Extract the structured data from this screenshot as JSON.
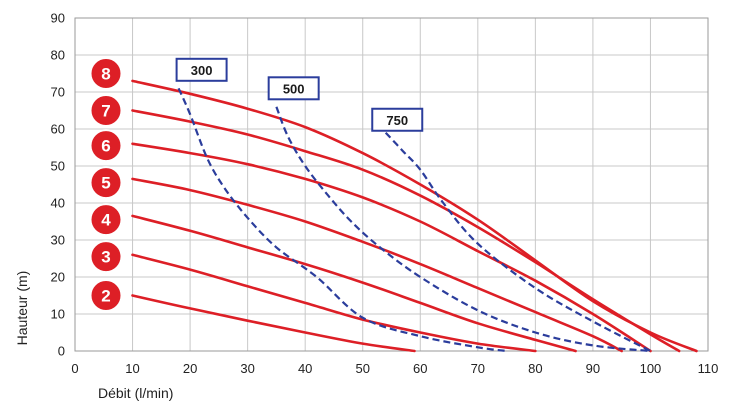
{
  "chart_data": {
    "type": "line",
    "xlabel": "Débit (l/min)",
    "ylabel": "Hauteur (m)",
    "xlim": [
      0,
      110
    ],
    "ylim": [
      0,
      90
    ],
    "x_ticks": [
      "0",
      "10",
      "20",
      "30",
      "40",
      "50",
      "60",
      "70",
      "80",
      "90",
      "100",
      "110"
    ],
    "y_ticks": [
      "0",
      "10",
      "20",
      "30",
      "40",
      "50",
      "60",
      "70",
      "80",
      "90"
    ],
    "grid": true,
    "colors": {
      "pressure": "#dd1f26",
      "flow": "#2b3d9c",
      "badge": "#dd1f26",
      "grid": "#c8c8c8"
    },
    "series": [
      {
        "name": "2",
        "x": [
          10,
          20,
          30,
          40,
          50,
          59
        ],
        "y": [
          15,
          11.5,
          8.2,
          5,
          2,
          0
        ]
      },
      {
        "name": "3",
        "x": [
          10,
          20,
          30,
          40,
          50,
          60,
          70,
          80
        ],
        "y": [
          26,
          22,
          17.5,
          13,
          8.5,
          5,
          2,
          0
        ]
      },
      {
        "name": "4",
        "x": [
          10,
          20,
          30,
          40,
          50,
          60,
          70,
          80,
          87
        ],
        "y": [
          36.5,
          32.5,
          28,
          23.5,
          18.5,
          13,
          7.5,
          3,
          0
        ]
      },
      {
        "name": "5",
        "x": [
          10,
          20,
          30,
          40,
          50,
          60,
          70,
          80,
          90,
          95
        ],
        "y": [
          46.5,
          43.5,
          39.5,
          35,
          29.5,
          23.5,
          17,
          10.5,
          4,
          0
        ]
      },
      {
        "name": "6",
        "x": [
          10,
          20,
          30,
          40,
          50,
          60,
          70,
          80,
          90,
          100
        ],
        "y": [
          56,
          53.5,
          50.5,
          46.5,
          41.5,
          35,
          27,
          19,
          10,
          0
        ]
      },
      {
        "name": "7",
        "x": [
          10,
          20,
          30,
          40,
          50,
          60,
          70,
          80,
          90,
          100,
          105
        ],
        "y": [
          65,
          62,
          58.5,
          54,
          49,
          42,
          33.5,
          24,
          14,
          4.5,
          0
        ]
      },
      {
        "name": "8",
        "x": [
          10,
          20,
          30,
          40,
          50,
          60,
          70,
          80,
          90,
          100,
          108
        ],
        "y": [
          73,
          69.5,
          65.5,
          60.5,
          53.5,
          45,
          35.5,
          24.5,
          13.5,
          5,
          0
        ]
      }
    ],
    "flow_curves": [
      {
        "name": "300",
        "x": [
          18,
          20,
          23,
          26,
          30,
          35,
          42,
          50,
          60,
          70,
          75
        ],
        "y": [
          71,
          64,
          52,
          44,
          36,
          28,
          20,
          9,
          4,
          1,
          0
        ]
      },
      {
        "name": "500",
        "x": [
          35,
          37,
          40,
          44,
          48,
          53,
          60,
          70,
          80,
          90,
          100
        ],
        "y": [
          66,
          58,
          50,
          42,
          35,
          28,
          20,
          11,
          5,
          1.5,
          0
        ]
      },
      {
        "name": "750",
        "x": [
          54,
          57,
          60,
          64,
          70,
          80,
          90,
          100
        ],
        "y": [
          59,
          54,
          49,
          40,
          29,
          17,
          8,
          0
        ]
      }
    ],
    "badges": [
      {
        "label": "8",
        "y": 75
      },
      {
        "label": "7",
        "y": 65
      },
      {
        "label": "6",
        "y": 55.5
      },
      {
        "label": "5",
        "y": 45.5
      },
      {
        "label": "4",
        "y": 35.5
      },
      {
        "label": "3",
        "y": 25.5
      },
      {
        "label": "2",
        "y": 15
      }
    ],
    "flow_labels": [
      {
        "label": "300",
        "x": 22,
        "y": 76
      },
      {
        "label": "500",
        "x": 38,
        "y": 71
      },
      {
        "label": "750",
        "x": 56,
        "y": 62.5
      }
    ]
  }
}
